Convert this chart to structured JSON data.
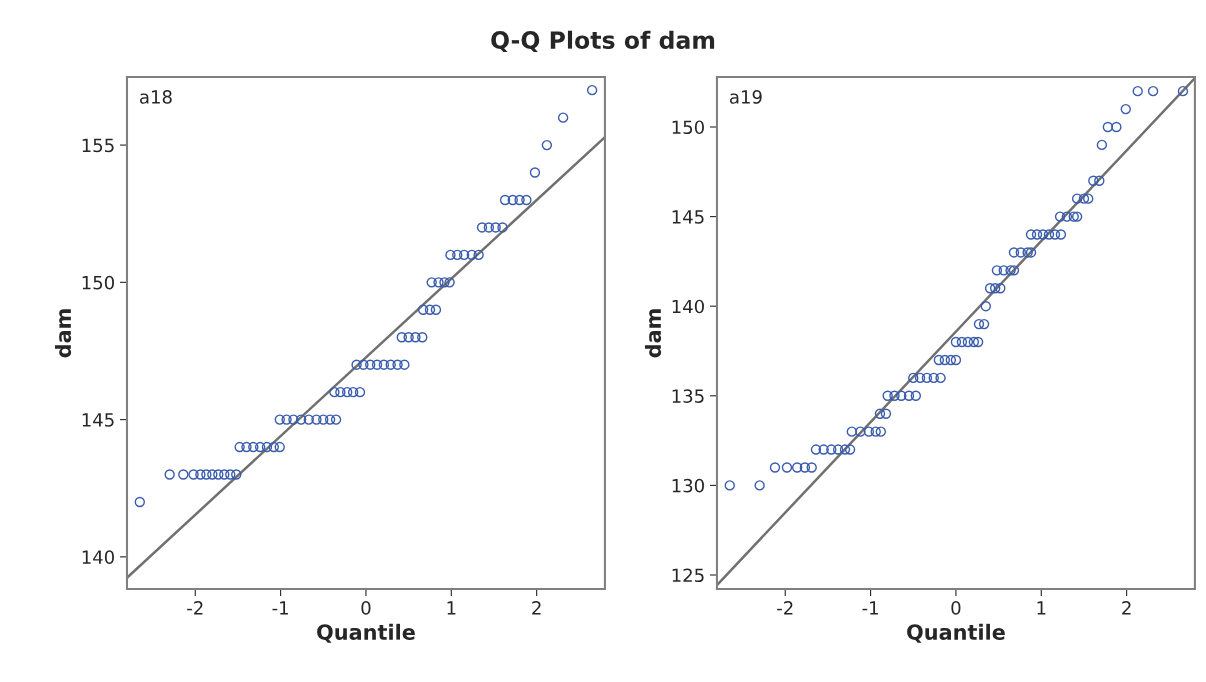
{
  "chart_data": [
    {
      "type": "scatter",
      "title": "Q-Q Plots of dam",
      "xlabel": "Quantile",
      "ylabel": "dam",
      "annotations": [
        "a18"
      ],
      "xlim": [
        -2.8,
        2.8
      ],
      "ylim": [
        138.83,
        157.48
      ],
      "xticks": [
        -2,
        -1,
        0,
        1,
        2
      ],
      "yticks": [
        140,
        145,
        150,
        155
      ],
      "grid": false,
      "series": [
        {
          "marker": "circle",
          "color": "#3a5cad",
          "x": [
            -2.65,
            -2.3,
            -2.14,
            -2.02,
            -1.94,
            -1.87,
            -1.8,
            -1.73,
            -1.66,
            -1.59,
            -1.52,
            -1.48,
            -1.4,
            -1.32,
            -1.24,
            -1.16,
            -1.08,
            -1.01,
            -1.01,
            -0.93,
            -0.85,
            -0.76,
            -0.67,
            -0.58,
            -0.5,
            -0.42,
            -0.35,
            -0.37,
            -0.3,
            -0.22,
            -0.15,
            -0.07,
            -0.11,
            -0.03,
            0.05,
            0.13,
            0.21,
            0.29,
            0.37,
            0.45,
            0.42,
            0.5,
            0.58,
            0.66,
            0.67,
            0.75,
            0.82,
            0.77,
            0.85,
            0.92,
            0.98,
            0.99,
            1.07,
            1.15,
            1.24,
            1.32,
            1.36,
            1.44,
            1.52,
            1.6,
            1.63,
            1.72,
            1.8,
            1.88,
            1.98,
            2.12,
            2.31,
            2.65
          ],
          "values": [
            142,
            143,
            143,
            143,
            143,
            143,
            143,
            143,
            143,
            143,
            143,
            144,
            144,
            144,
            144,
            144,
            144,
            144,
            145,
            145,
            145,
            145,
            145,
            145,
            145,
            145,
            145,
            146,
            146,
            146,
            146,
            146,
            147,
            147,
            147,
            147,
            147,
            147,
            147,
            147,
            148,
            148,
            148,
            148,
            149,
            149,
            149,
            150,
            150,
            150,
            150,
            151,
            151,
            151,
            151,
            151,
            152,
            152,
            152,
            152,
            153,
            153,
            153,
            153,
            154,
            155,
            156,
            157
          ]
        },
        {
          "type": "line",
          "color": "#707070",
          "x": [
            -2.8,
            2.8
          ],
          "values": [
            139.24,
            155.29
          ]
        }
      ]
    },
    {
      "type": "scatter",
      "xlabel": "Quantile",
      "ylabel": "dam",
      "annotations": [
        "a19"
      ],
      "xlim": [
        -2.8,
        2.8
      ],
      "ylim": [
        124.22,
        152.79
      ],
      "xticks": [
        -2,
        -1,
        0,
        1,
        2
      ],
      "yticks": [
        125,
        130,
        135,
        140,
        145,
        150
      ],
      "grid": false,
      "series": [
        {
          "marker": "circle",
          "color": "#3a5cad",
          "x": [
            -2.65,
            -2.3,
            -2.12,
            -1.98,
            -1.86,
            -1.77,
            -1.69,
            -1.64,
            -1.55,
            -1.46,
            -1.38,
            -1.3,
            -1.24,
            -1.22,
            -1.12,
            -1.02,
            -0.94,
            -0.88,
            -0.89,
            -0.82,
            -0.8,
            -0.72,
            -0.64,
            -0.55,
            -0.47,
            -0.5,
            -0.42,
            -0.34,
            -0.26,
            -0.18,
            -0.2,
            -0.13,
            -0.06,
            0.0,
            0.0,
            0.07,
            0.14,
            0.21,
            0.26,
            0.27,
            0.33,
            0.35,
            0.4,
            0.46,
            0.52,
            0.48,
            0.56,
            0.64,
            0.68,
            0.68,
            0.76,
            0.84,
            0.88,
            0.88,
            0.95,
            1.02,
            1.09,
            1.16,
            1.23,
            1.22,
            1.3,
            1.38,
            1.42,
            1.42,
            1.5,
            1.55,
            1.61,
            1.68,
            1.71,
            1.78,
            1.88,
            1.99,
            2.13,
            2.31,
            2.66
          ],
          "values": [
            130,
            130,
            131,
            131,
            131,
            131,
            131,
            132,
            132,
            132,
            132,
            132,
            132,
            133,
            133,
            133,
            133,
            133,
            134,
            134,
            135,
            135,
            135,
            135,
            135,
            136,
            136,
            136,
            136,
            136,
            137,
            137,
            137,
            137,
            138,
            138,
            138,
            138,
            138,
            139,
            139,
            140,
            141,
            141,
            141,
            142,
            142,
            142,
            142,
            143,
            143,
            143,
            143,
            144,
            144,
            144,
            144,
            144,
            144,
            145,
            145,
            145,
            145,
            146,
            146,
            146,
            147,
            147,
            149,
            150,
            150,
            151,
            152,
            152,
            152
          ]
        },
        {
          "type": "line",
          "color": "#707070",
          "x": [
            -2.8,
            2.8
          ],
          "values": [
            124.44,
            152.73
          ]
        }
      ]
    }
  ]
}
